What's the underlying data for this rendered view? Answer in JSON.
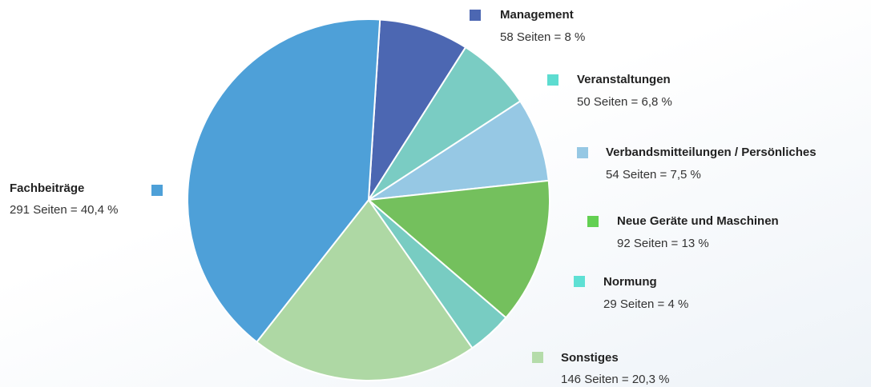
{
  "chart_data": {
    "type": "pie",
    "categories": [
      "Management",
      "Veranstaltungen",
      "Verbandsmitteilungen / Persönliches",
      "Neue Geräte und Maschinen",
      "Normung",
      "Sonstiges",
      "Fachbeiträge"
    ],
    "values": [
      8,
      6.8,
      7.5,
      13,
      4,
      20.3,
      40.4
    ],
    "value_labels": [
      "58 Seiten = 8 %",
      "50 Seiten = 6,8 %",
      "54 Seiten = 7,5 %",
      "92 Seiten = 13 %",
      "29 Seiten = 4 %",
      "146 Seiten = 20,3 %",
      "291 Seiten = 40,4 %"
    ],
    "colors": [
      "#4c67b2",
      "#7accc3",
      "#96c8e4",
      "#74c05d",
      "#78ccc2",
      "#aed8a4",
      "#4ea0d8"
    ],
    "legend_colors": [
      "#4c67b2",
      "#5ddcd0",
      "#96c8e4",
      "#63d052",
      "#5ee0d4",
      "#b5dcaa",
      "#4ea0d8"
    ]
  }
}
